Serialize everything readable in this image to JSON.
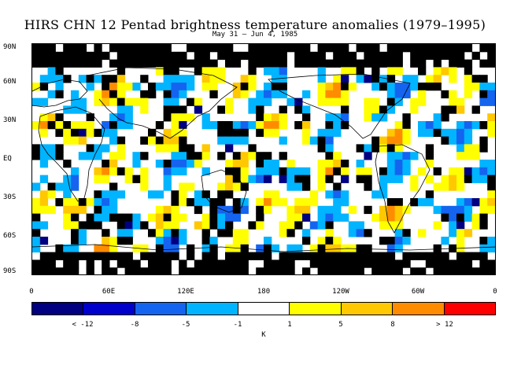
{
  "title": "HIRS CHN 12 Pentad brightness temperature anomalies (1979–1995)",
  "subtitle": "May 31 – Jun 4, 1985",
  "lat_labels": [
    "90N",
    "60N",
    "30N",
    "EQ",
    "30S",
    "60S",
    "90S"
  ],
  "lon_labels": [
    "0",
    "60E",
    "120E",
    "180",
    "120W",
    "60W",
    "0"
  ],
  "colorbar": {
    "colors": [
      "#000080",
      "#0000cc",
      "#1464f0",
      "#00b4ff",
      "#ffffff",
      "#ffff00",
      "#ffc800",
      "#ff8c00",
      "#ff0000"
    ],
    "labels": [
      "< -12",
      "-8",
      "-5",
      "-1",
      "1",
      "5",
      "8",
      "> 12"
    ],
    "unit": "K"
  }
}
